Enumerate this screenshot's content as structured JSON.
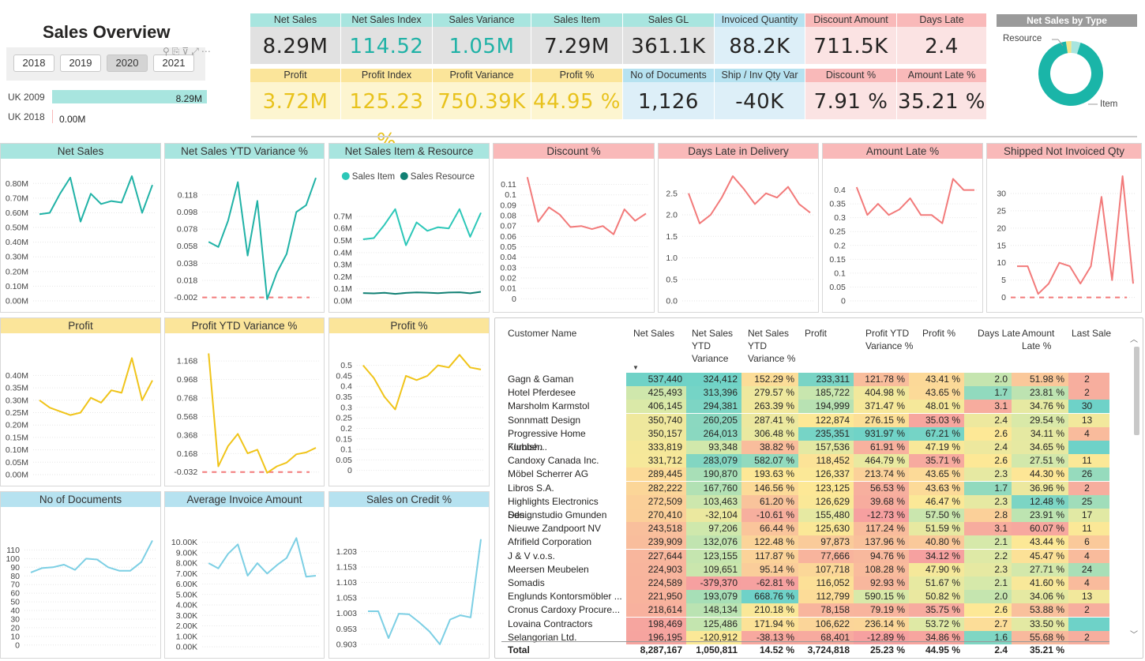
{
  "header": {
    "title": "Sales Overview"
  },
  "slicer": {
    "years": [
      "2018",
      "2019",
      "2020",
      "2021"
    ],
    "selected": "2020"
  },
  "uk": [
    {
      "label": "UK 2009",
      "value": "8.29M",
      "frac": 1.0
    },
    {
      "label": "UK 2018",
      "value": "0.00M",
      "frac": 0.0
    }
  ],
  "kpis": {
    "row1": [
      {
        "label": "Net Sales",
        "value": "8.29M",
        "bg": "#e1e1e1",
        "hbg": "#a8e5df",
        "color": "#252423"
      },
      {
        "label": "Net Sales Index",
        "value": "114.52 %",
        "bg": "#e1e1e1",
        "hbg": "#a8e5df",
        "color": "#20b2a6"
      },
      {
        "label": "Sales Variance",
        "value": "1.05M",
        "bg": "#e1e1e1",
        "hbg": "#a8e5df",
        "color": "#20b2a6"
      },
      {
        "label": "Sales Item",
        "value": "7.29M",
        "bg": "#e1e1e1",
        "hbg": "#a8e5df",
        "color": "#252423"
      },
      {
        "label": "Sales GL",
        "value": "361.1K",
        "bg": "#e1e1e1",
        "hbg": "#a8e5df",
        "color": "#252423"
      },
      {
        "label": "Invoiced Quantity",
        "value": "88.2K",
        "bg": "#ddeff8",
        "hbg": "#b6e2f0",
        "color": "#252423"
      },
      {
        "label": "Discount Amount",
        "value": "711.5K",
        "bg": "#fbe3e3",
        "hbg": "#f9b9b9",
        "color": "#252423"
      },
      {
        "label": "Days Late",
        "value": "2.4",
        "bg": "#fbe3e3",
        "hbg": "#f9b9b9",
        "color": "#252423"
      }
    ],
    "row2": [
      {
        "label": "Profit",
        "value": "3.72M",
        "bg": "#fdf5d0",
        "hbg": "#fbe59a",
        "color": "#e8c21c"
      },
      {
        "label": "Profit Index",
        "value": "125.23 %",
        "bg": "#fdf5d0",
        "hbg": "#fbe59a",
        "color": "#e8c21c"
      },
      {
        "label": "Profit Variance",
        "value": "750.39K",
        "bg": "#fdf5d0",
        "hbg": "#fbe59a",
        "color": "#e8c21c"
      },
      {
        "label": "Profit %",
        "value": "44.95 %",
        "bg": "#fdf5d0",
        "hbg": "#fbe59a",
        "color": "#e8c21c"
      },
      {
        "label": "No of Documents",
        "value": "1,126",
        "bg": "#ddeff8",
        "hbg": "#b6e2f0",
        "color": "#252423"
      },
      {
        "label": "Ship / Inv Qty Var",
        "value": "-40K",
        "bg": "#ddeff8",
        "hbg": "#b6e2f0",
        "color": "#252423"
      },
      {
        "label": "Discount %",
        "value": "7.91 %",
        "bg": "#fbe3e3",
        "hbg": "#f9b9b9",
        "color": "#252423"
      },
      {
        "label": "Amount Late %",
        "value": "35.21 %",
        "bg": "#fbe3e3",
        "hbg": "#f9b9b9",
        "color": "#252423"
      }
    ]
  },
  "donut": {
    "title": "Net Sales by Type",
    "labels": [
      "Resource",
      "Item"
    ],
    "values": [
      4.4,
      88
    ],
    "colors": [
      "#a8e5df",
      "#1ab5a8"
    ],
    "gapColor": "#f3e48a"
  },
  "chart_data": [
    {
      "type": "line",
      "title": "Net Sales",
      "hbg": "#a8e5df",
      "color": "#20b2a6",
      "ylim": [
        0,
        0.85
      ],
      "yticks": [
        0,
        0.1,
        0.2,
        0.3,
        0.4,
        0.5,
        0.6,
        0.7,
        0.8
      ],
      "ytickLabels": [
        "0.00M",
        "0.10M",
        "0.20M",
        "0.30M",
        "0.40M",
        "0.50M",
        "0.60M",
        "0.70M",
        "0.80M"
      ],
      "series": [
        {
          "name": "Net Sales",
          "values": [
            0.59,
            0.6,
            0.73,
            0.84,
            0.54,
            0.73,
            0.66,
            0.68,
            0.67,
            0.85,
            0.6,
            0.79
          ]
        }
      ]
    },
    {
      "type": "line",
      "title": "Net Sales YTD Variance %",
      "hbg": "#a8e5df",
      "color": "#20b2a6",
      "ylim": [
        -0.006,
        0.14
      ],
      "yticks": [
        -0.002,
        0.018,
        0.038,
        0.058,
        0.078,
        0.098,
        0.118
      ],
      "ytickLabels": [
        "-0.002",
        "0.018",
        "0.038",
        "0.058",
        "0.078",
        "0.098",
        "0.118"
      ],
      "refLine": -0.002,
      "series": [
        {
          "name": "Net Sales YTD Variance %",
          "values": [
            0.063,
            0.057,
            0.088,
            0.133,
            0.047,
            0.111,
            -0.004,
            0.027,
            0.049,
            0.098,
            0.106,
            0.138
          ]
        }
      ]
    },
    {
      "type": "line",
      "title": "Net Sales Item & Resource",
      "hbg": "#a8e5df",
      "ylim": [
        0,
        0.85
      ],
      "yticks": [
        0,
        0.1,
        0.2,
        0.3,
        0.4,
        0.5,
        0.6,
        0.7
      ],
      "ytickLabels": [
        "0.0M",
        "0.1M",
        "0.2M",
        "0.3M",
        "0.4M",
        "0.5M",
        "0.6M",
        "0.7M"
      ],
      "legend": [
        "Sales Item",
        "Sales Resource"
      ],
      "series": [
        {
          "name": "Sales Item",
          "color": "#2cc7b8",
          "values": [
            0.51,
            0.52,
            0.63,
            0.76,
            0.46,
            0.65,
            0.58,
            0.61,
            0.6,
            0.76,
            0.53,
            0.73
          ]
        },
        {
          "name": "Sales Resource",
          "color": "#118074",
          "values": [
            0.065,
            0.062,
            0.067,
            0.058,
            0.066,
            0.07,
            0.068,
            0.064,
            0.069,
            0.071,
            0.063,
            0.075
          ]
        }
      ]
    },
    {
      "type": "line",
      "title": "Discount %",
      "hbg": "#f9b9b9",
      "color": "#f27a7a",
      "ylim": [
        -0.002,
        0.118
      ],
      "yticks": [
        0,
        0.01,
        0.02,
        0.03,
        0.04,
        0.05,
        0.06,
        0.07,
        0.08,
        0.09,
        0.1,
        0.11
      ],
      "ytickLabels": [
        "0",
        "0.01",
        "0.02",
        "0.03",
        "0.04",
        "0.05",
        "0.06",
        "0.07",
        "0.08",
        "0.09",
        "0.1",
        "0.11"
      ],
      "series": [
        {
          "name": "Discount %",
          "values": [
            0.117,
            0.074,
            0.088,
            0.081,
            0.069,
            0.07,
            0.067,
            0.07,
            0.062,
            0.086,
            0.075,
            0.082
          ]
        }
      ]
    },
    {
      "type": "line",
      "title": "Days Late in Delivery",
      "hbg": "#f9b9b9",
      "color": "#f27a7a",
      "ylim": [
        0,
        2.9
      ],
      "yticks": [
        0,
        0.5,
        1,
        1.5,
        2,
        2.5
      ],
      "ytickLabels": [
        "0.0",
        "0.5",
        "1.0",
        "1.5",
        "2.0",
        "2.5"
      ],
      "series": [
        {
          "name": "Days Late",
          "values": [
            2.5,
            1.8,
            2.0,
            2.4,
            2.9,
            2.6,
            2.25,
            2.5,
            2.4,
            2.65,
            2.25,
            2.05
          ]
        }
      ]
    },
    {
      "type": "line",
      "title": "Amount Late %",
      "hbg": "#f9b9b9",
      "color": "#f27a7a",
      "ylim": [
        0,
        0.45
      ],
      "yticks": [
        0,
        0.05,
        0.1,
        0.15,
        0.2,
        0.25,
        0.3,
        0.35,
        0.4
      ],
      "ytickLabels": [
        "0",
        "0.05",
        "0.1",
        "0.15",
        "0.2",
        "0.25",
        "0.3",
        "0.35",
        "0.4"
      ],
      "series": [
        {
          "name": "Amount Late %",
          "values": [
            0.41,
            0.31,
            0.35,
            0.31,
            0.33,
            0.37,
            0.31,
            0.31,
            0.28,
            0.44,
            0.4,
            0.4
          ]
        }
      ]
    },
    {
      "type": "line",
      "title": "Shipped Not Invoiced Qty",
      "hbg": "#f9b9b9",
      "color": "#f27a7a",
      "ylim": [
        -1,
        35
      ],
      "yticks": [
        0,
        5,
        10,
        15,
        20,
        25,
        30
      ],
      "ytickLabels": [
        "0",
        "5",
        "10",
        "15",
        "20",
        "25",
        "30"
      ],
      "refLine": 0,
      "series": [
        {
          "name": "Shipped Not Invoiced Qty",
          "values": [
            9,
            9,
            1,
            4,
            10,
            9,
            4,
            9,
            29,
            5,
            35,
            4
          ]
        }
      ]
    },
    {
      "type": "line",
      "title": "Profit",
      "hbg": "#fbe59a",
      "color": "#f0c419",
      "ylim": [
        0,
        0.5
      ],
      "yticks": [
        0,
        0.05,
        0.1,
        0.15,
        0.2,
        0.25,
        0.3,
        0.35,
        0.4
      ],
      "ytickLabels": [
        "0.00M",
        "0.05M",
        "0.10M",
        "0.15M",
        "0.20M",
        "0.25M",
        "0.30M",
        "0.35M",
        "0.40M"
      ],
      "series": [
        {
          "name": "Profit",
          "values": [
            0.3,
            0.27,
            0.255,
            0.24,
            0.25,
            0.31,
            0.29,
            0.34,
            0.33,
            0.47,
            0.3,
            0.38
          ]
        }
      ]
    },
    {
      "type": "line",
      "title": "Profit YTD Variance %",
      "hbg": "#fbe59a",
      "color": "#f0c419",
      "ylim": [
        -0.06,
        1.28
      ],
      "yticks": [
        -0.032,
        0.168,
        0.368,
        0.568,
        0.768,
        0.968,
        1.168
      ],
      "ytickLabels": [
        "-0.032",
        "0.168",
        "0.368",
        "0.568",
        "0.768",
        "0.968",
        "1.168"
      ],
      "refLine": -0.032,
      "series": [
        {
          "name": "Profit YTD Variance %",
          "values": [
            1.25,
            0.03,
            0.25,
            0.38,
            0.17,
            0.21,
            -0.04,
            0.03,
            0.07,
            0.16,
            0.18,
            0.23
          ]
        }
      ]
    },
    {
      "type": "line",
      "title": "Profit %",
      "hbg": "#fbe59a",
      "color": "#f0c419",
      "ylim": [
        -0.02,
        0.57
      ],
      "yticks": [
        0,
        0.05,
        0.1,
        0.15,
        0.2,
        0.25,
        0.3,
        0.35,
        0.4,
        0.45,
        0.5
      ],
      "ytickLabels": [
        "0",
        "0.05",
        "0.1",
        "0.15",
        "0.2",
        "0.25",
        "0.3",
        "0.35",
        "0.4",
        "0.45",
        "0.5"
      ],
      "series": [
        {
          "name": "Profit %",
          "values": [
            0.5,
            0.44,
            0.35,
            0.29,
            0.45,
            0.43,
            0.45,
            0.5,
            0.49,
            0.55,
            0.49,
            0.48
          ]
        }
      ]
    },
    {
      "type": "line",
      "title": "No of Documents",
      "hbg": "#b6e2f0",
      "color": "#7ccfe4",
      "ylim": [
        -2,
        125
      ],
      "yticks": [
        0,
        10,
        20,
        30,
        40,
        50,
        60,
        70,
        80,
        90,
        100,
        110
      ],
      "ytickLabels": [
        "0",
        "10",
        "20",
        "30",
        "40",
        "50",
        "60",
        "70",
        "80",
        "90",
        "100",
        "110"
      ],
      "series": [
        {
          "name": "No of Documents",
          "values": [
            84,
            89,
            90,
            93,
            87,
            100,
            99,
            90,
            86,
            86,
            96,
            121
          ]
        }
      ]
    },
    {
      "type": "line",
      "title": "Average Invoice Amount",
      "hbg": "#b6e2f0",
      "color": "#7ccfe4",
      "ylim": [
        0,
        10500
      ],
      "yticks": [
        0,
        1000,
        2000,
        3000,
        4000,
        5000,
        6000,
        7000,
        8000,
        9000,
        10000
      ],
      "ytickLabels": [
        "0.00K",
        "1.00K",
        "2.00K",
        "3.00K",
        "4.00K",
        "5.00K",
        "6.00K",
        "7.00K",
        "8.00K",
        "9.00K",
        "10.00K"
      ],
      "series": [
        {
          "name": "Average Invoice Amount",
          "values": [
            8000,
            7500,
            8900,
            9800,
            6800,
            8000,
            7000,
            7800,
            8500,
            10400,
            6700,
            6800
          ]
        }
      ]
    },
    {
      "type": "line",
      "title": "Sales on Credit %",
      "hbg": "#b6e2f0",
      "color": "#7ccfe4",
      "ylim": [
        0.895,
        1.25
      ],
      "yticks": [
        0.903,
        0.953,
        1.003,
        1.053,
        1.103,
        1.153,
        1.203
      ],
      "ytickLabels": [
        "0.903",
        "0.953",
        "1.003",
        "1.053",
        "1.103",
        "1.153",
        "1.203"
      ],
      "series": [
        {
          "name": "Sales on Credit %",
          "values": [
            1.01,
            1.01,
            0.923,
            1.002,
            1.0,
            0.974,
            0.944,
            0.903,
            0.983,
            0.997,
            0.99,
            1.243
          ]
        }
      ]
    }
  ],
  "table": {
    "headers": [
      "Customer Name",
      "Net Sales",
      "Net Sales YTD Variance",
      "Net Sales YTD Variance %",
      "Profit",
      "Profit YTD Variance %",
      "Profit %",
      "Days Late",
      "Amount Late %",
      "Last Sale"
    ],
    "rows": [
      [
        "Gagn & Gaman",
        "537,440",
        "324,412",
        "152.29 %",
        "233,311",
        "121.78 %",
        "43.41 %",
        "2.0",
        "51.98 %",
        "2"
      ],
      [
        "Hotel Pferdesee",
        "425,493",
        "313,396",
        "279.57 %",
        "185,722",
        "404.98 %",
        "43.65 %",
        "1.7",
        "23.81 %",
        "2"
      ],
      [
        "Marsholm Karmstol",
        "406,145",
        "294,381",
        "263.39 %",
        "194,999",
        "371.47 %",
        "48.01 %",
        "3.1",
        "34.76 %",
        "30"
      ],
      [
        "Sonnmatt Design",
        "350,740",
        "260,205",
        "287.41 %",
        "122,874",
        "276.15 %",
        "35.03 %",
        "2.4",
        "29.54 %",
        "13"
      ],
      [
        "Progressive Home Furnish...",
        "350,157",
        "264,013",
        "306.48 %",
        "235,351",
        "931.97 %",
        "67.21 %",
        "2.6",
        "34.11 %",
        "4"
      ],
      [
        "Klubben",
        "333,819",
        "93,348",
        "38.82 %",
        "157,536",
        "61.91 %",
        "47.19 %",
        "2.4",
        "34.65 %",
        ""
      ],
      [
        "Candoxy Canada Inc.",
        "331,712",
        "283,079",
        "582.07 %",
        "118,452",
        "464.79 %",
        "35.71 %",
        "2.6",
        "27.51 %",
        "11"
      ],
      [
        "Möbel Scherrer AG",
        "289,445",
        "190,870",
        "193.63 %",
        "126,337",
        "213.74 %",
        "43.65 %",
        "2.3",
        "44.30 %",
        "26"
      ],
      [
        "Libros S.A.",
        "282,222",
        "167,760",
        "146.56 %",
        "123,125",
        "56.53 %",
        "43.63 %",
        "1.7",
        "36.96 %",
        "2"
      ],
      [
        "Highlights Electronics Sdn...",
        "272,509",
        "103,463",
        "61.20 %",
        "126,629",
        "39.68 %",
        "46.47 %",
        "2.3",
        "12.48 %",
        "25"
      ],
      [
        "Designstudio Gmunden",
        "270,410",
        "-32,104",
        "-10.61 %",
        "155,480",
        "-12.73 %",
        "57.50 %",
        "2.8",
        "23.91 %",
        "17"
      ],
      [
        "Nieuwe Zandpoort NV",
        "243,518",
        "97,206",
        "66.44 %",
        "125,630",
        "117.24 %",
        "51.59 %",
        "3.1",
        "60.07 %",
        "11"
      ],
      [
        "Afrifield Corporation",
        "239,909",
        "132,076",
        "122.48 %",
        "97,873",
        "137.96 %",
        "40.80 %",
        "2.1",
        "43.44 %",
        "6"
      ],
      [
        "J & V v.o.s.",
        "227,644",
        "123,155",
        "117.87 %",
        "77,666",
        "94.76 %",
        "34.12 %",
        "2.2",
        "45.47 %",
        "4"
      ],
      [
        "Meersen Meubelen",
        "224,903",
        "109,651",
        "95.14 %",
        "107,718",
        "108.28 %",
        "47.90 %",
        "2.3",
        "27.71 %",
        "24"
      ],
      [
        "Somadis",
        "224,589",
        "-379,370",
        "-62.81 %",
        "116,052",
        "92.93 %",
        "51.67 %",
        "2.1",
        "41.60 %",
        "4"
      ],
      [
        "Englunds Kontorsmöbler ...",
        "221,950",
        "193,079",
        "668.76 %",
        "112,799",
        "590.15 %",
        "50.82 %",
        "2.0",
        "34.06 %",
        "13"
      ],
      [
        "Cronus Cardoxy Procure...",
        "218,614",
        "148,134",
        "210.18 %",
        "78,158",
        "79.19 %",
        "35.75 %",
        "2.6",
        "53.88 %",
        "2"
      ],
      [
        "Lovaina Contractors",
        "198,469",
        "125,486",
        "171.94 %",
        "106,622",
        "236.14 %",
        "53.72 %",
        "2.7",
        "33.50 %",
        ""
      ],
      [
        "Selangorian Ltd.",
        "196,195",
        "-120,912",
        "-38.13 %",
        "68,401",
        "-12.89 %",
        "34.86 %",
        "1.6",
        "55.68 %",
        "2"
      ]
    ],
    "total": [
      "Total",
      "8,287,167",
      "1,050,811",
      "14.52 %",
      "3,724,818",
      "25.23 %",
      "44.95 %",
      "2.4",
      "35.21 %",
      ""
    ]
  }
}
